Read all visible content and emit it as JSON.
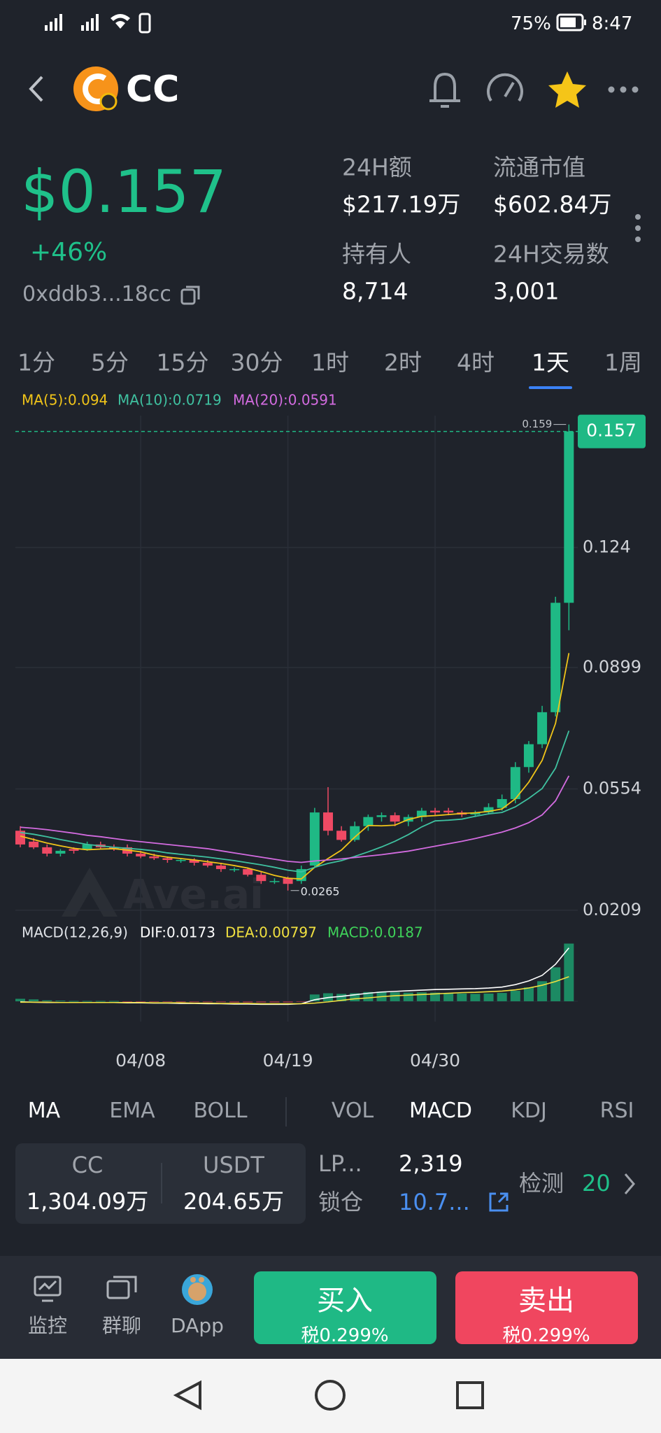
{
  "status_bar": {
    "battery": "75%",
    "time": "8:47"
  },
  "header": {
    "symbol": "CC"
  },
  "price": {
    "price": "$0.157",
    "change": "+46%",
    "address": "0xddb3...18cc"
  },
  "stats": [
    {
      "label": "24H额",
      "value": "$217.19万"
    },
    {
      "label": "流通市值",
      "value": "$602.84万"
    },
    {
      "label": "持有人",
      "value": "8,714"
    },
    {
      "label": "24H交易数",
      "value": "3,001"
    }
  ],
  "timeframes": {
    "tabs": [
      "1分",
      "5分",
      "15分",
      "30分",
      "1时",
      "2时",
      "4时",
      "1天",
      "1周"
    ],
    "active": 7
  },
  "chart_data": {
    "type": "candlestick",
    "categories": [
      null,
      null,
      null,
      null,
      null,
      null,
      null,
      null,
      null,
      "04/08",
      null,
      null,
      null,
      null,
      null,
      null,
      null,
      null,
      null,
      null,
      "04/19",
      null,
      null,
      null,
      null,
      null,
      null,
      null,
      null,
      null,
      null,
      "04/30",
      null,
      null,
      null,
      null,
      null,
      null,
      null,
      null,
      null,
      null
    ],
    "open": [
      0.0435,
      0.0404,
      0.0388,
      0.037,
      0.0383,
      0.0383,
      0.0396,
      0.0388,
      0.0388,
      0.037,
      0.0362,
      0.0357,
      0.0352,
      0.0352,
      0.0344,
      0.0336,
      0.0326,
      0.0326,
      0.031,
      0.0292,
      0.03,
      0.0292,
      0.0336,
      0.0487,
      0.0435,
      0.0409,
      0.0448,
      0.0474,
      0.0479,
      0.0461,
      0.0474,
      0.0492,
      0.0492,
      0.0487,
      0.0481,
      0.0487,
      0.05,
      0.0525,
      0.0616,
      0.0681,
      0.0772,
      0.1083
    ],
    "high": [
      0.0448,
      0.0414,
      0.0396,
      0.0383,
      0.0388,
      0.0404,
      0.0404,
      0.0396,
      0.0396,
      0.0378,
      0.037,
      0.0362,
      0.0357,
      0.0357,
      0.0352,
      0.0344,
      0.0331,
      0.0331,
      0.0318,
      0.03,
      0.0305,
      0.0336,
      0.05,
      0.0559,
      0.0448,
      0.0461,
      0.0481,
      0.0487,
      0.0487,
      0.0481,
      0.05,
      0.05,
      0.05,
      0.0492,
      0.0492,
      0.0513,
      0.0538,
      0.063,
      0.069,
      0.079,
      0.11,
      0.159
    ],
    "low": [
      0.0388,
      0.0383,
      0.0362,
      0.0362,
      0.037,
      0.0378,
      0.0383,
      0.0378,
      0.0362,
      0.0357,
      0.0352,
      0.0344,
      0.0344,
      0.0336,
      0.0331,
      0.0318,
      0.0318,
      0.0305,
      0.0284,
      0.0284,
      0.0265,
      0.0284,
      0.0331,
      0.0422,
      0.0404,
      0.0404,
      0.0435,
      0.0461,
      0.0448,
      0.0448,
      0.0461,
      0.0479,
      0.0479,
      0.0474,
      0.0474,
      0.0481,
      0.0492,
      0.0513,
      0.06,
      0.067,
      0.076,
      0.1005
    ],
    "close": [
      0.0396,
      0.0388,
      0.037,
      0.0378,
      0.0378,
      0.0396,
      0.0388,
      0.0383,
      0.037,
      0.0362,
      0.0357,
      0.0352,
      0.0352,
      0.0344,
      0.0336,
      0.0326,
      0.0326,
      0.031,
      0.0292,
      0.0292,
      0.0284,
      0.0326,
      0.0487,
      0.0435,
      0.0409,
      0.0448,
      0.0474,
      0.0479,
      0.0461,
      0.0474,
      0.0492,
      0.0487,
      0.0487,
      0.0481,
      0.0487,
      0.0502,
      0.0525,
      0.0616,
      0.0681,
      0.0772,
      0.1083,
      0.157
    ],
    "up_color": "#1fb985",
    "down_color": "#ef4a64",
    "series": [
      {
        "name": "MA(5):0.094",
        "color": "#f0c419",
        "values": [
          0.042,
          0.041,
          0.04,
          0.0392,
          0.0385,
          0.0381,
          0.0383,
          0.0384,
          0.038,
          0.0375,
          0.0366,
          0.036,
          0.0356,
          0.0352,
          0.0347,
          0.0342,
          0.0336,
          0.0329,
          0.0319,
          0.0308,
          0.03,
          0.0298,
          0.0331,
          0.0356,
          0.038,
          0.0417,
          0.045,
          0.0449,
          0.0451,
          0.0467,
          0.0476,
          0.0478,
          0.0481,
          0.0484,
          0.0486,
          0.049,
          0.0497,
          0.0526,
          0.0573,
          0.0635,
          0.074,
          0.094
        ]
      },
      {
        "name": "MA(10):0.0719",
        "color": "#3fc1a0",
        "values": [
          0.043,
          0.0425,
          0.0418,
          0.041,
          0.0403,
          0.0396,
          0.0392,
          0.0388,
          0.0385,
          0.0382,
          0.0378,
          0.0372,
          0.0368,
          0.0364,
          0.036,
          0.0355,
          0.035,
          0.0344,
          0.0338,
          0.0331,
          0.0323,
          0.0318,
          0.0331,
          0.0342,
          0.035,
          0.0362,
          0.0375,
          0.0389,
          0.0405,
          0.0424,
          0.0446,
          0.0463,
          0.0465,
          0.0468,
          0.0476,
          0.0483,
          0.0487,
          0.0503,
          0.0527,
          0.0555,
          0.0613,
          0.0719
        ]
      },
      {
        "name": "MA(20):0.0591",
        "color": "#d36be0",
        "values": [
          0.0445,
          0.0442,
          0.0438,
          0.0433,
          0.0428,
          0.0422,
          0.0418,
          0.0413,
          0.0408,
          0.0404,
          0.04,
          0.0396,
          0.0392,
          0.0388,
          0.0384,
          0.0378,
          0.0372,
          0.0366,
          0.036,
          0.0354,
          0.0348,
          0.0345,
          0.0349,
          0.0352,
          0.0355,
          0.0359,
          0.0363,
          0.0367,
          0.0372,
          0.0377,
          0.0384,
          0.0391,
          0.0398,
          0.0405,
          0.0413,
          0.0422,
          0.0431,
          0.0443,
          0.0458,
          0.048,
          0.052,
          0.0591
        ]
      }
    ],
    "ylim": [
      0.0175,
      0.1615
    ],
    "yticks": [
      0.124,
      0.0899,
      0.0554,
      0.0209
    ],
    "grid": true,
    "last_price": 0.157,
    "high_mark": 0.159,
    "low_mark": 0.0265,
    "watermark": "Ave.ai",
    "macd": {
      "title": "MACD(12,26,9)",
      "ylim": [
        -0.0025,
        0.0195
      ],
      "histogram": {
        "name": "MACD:0.0187",
        "color": "#3fd35a",
        "values": [
          0.0008,
          0.0006,
          0.0003,
          0.0002,
          0.0001,
          0.0001,
          0.0001,
          0.0001,
          -0.0001,
          -0.0002,
          -0.0002,
          -0.0002,
          -0.0003,
          -0.0003,
          -0.0003,
          -0.0003,
          -0.0004,
          -0.0004,
          -0.0004,
          -0.0004,
          -0.0004,
          -0.0002,
          0.0022,
          0.0026,
          0.0024,
          0.0026,
          0.003,
          0.0031,
          0.0029,
          0.0028,
          0.0029,
          0.0028,
          0.0027,
          0.0025,
          0.0024,
          0.0025,
          0.0027,
          0.0034,
          0.0045,
          0.0065,
          0.011,
          0.0187
        ]
      },
      "series": [
        {
          "name": "DIF:0.0173",
          "color": "#ffffff",
          "values": [
            -0.0002,
            -0.0003,
            -0.0004,
            -0.0004,
            -0.0004,
            -0.0004,
            -0.0004,
            -0.0004,
            -0.0005,
            -0.0005,
            -0.0006,
            -0.0006,
            -0.0007,
            -0.0007,
            -0.0008,
            -0.0008,
            -0.0009,
            -0.0009,
            -0.001,
            -0.001,
            -0.001,
            -0.0008,
            0.0005,
            0.0012,
            0.0016,
            0.0021,
            0.0026,
            0.003,
            0.0032,
            0.0034,
            0.0036,
            0.0038,
            0.0039,
            0.004,
            0.0041,
            0.0043,
            0.0046,
            0.0054,
            0.0066,
            0.0084,
            0.012,
            0.0173
          ]
        },
        {
          "name": "DEA:0.00797",
          "color": "#f0e040",
          "values": [
            -0.0003,
            -0.0003,
            -0.0003,
            -0.0004,
            -0.0004,
            -0.0004,
            -0.0004,
            -0.0004,
            -0.0004,
            -0.0004,
            -0.0005,
            -0.0005,
            -0.0005,
            -0.0006,
            -0.0006,
            -0.0007,
            -0.0007,
            -0.0007,
            -0.0008,
            -0.0008,
            -0.0008,
            -0.0008,
            -0.0006,
            -0.0002,
            0.0003,
            0.0008,
            0.0011,
            0.0015,
            0.0018,
            0.002,
            0.0022,
            0.0024,
            0.0026,
            0.0028,
            0.0029,
            0.0031,
            0.0033,
            0.0037,
            0.0043,
            0.0052,
            0.0064,
            0.00797
          ]
        }
      ]
    }
  },
  "indicators": {
    "tabs": [
      "MA",
      "EMA",
      "BOLL",
      "VOL",
      "MACD",
      "KDJ",
      "RSI"
    ],
    "active": [
      0,
      4
    ]
  },
  "pool": {
    "tokens": [
      {
        "symbol": "CC",
        "amount": "1,304.09万"
      },
      {
        "symbol": "USDT",
        "amount": "204.65万"
      }
    ],
    "lp_label": "LP...",
    "lp_value": "2,319",
    "lock_label": "锁仓",
    "lock_value": "10.7...",
    "detect_label": "检测",
    "detect_count": "20"
  },
  "bottom_nav": {
    "items": [
      "监控",
      "群聊",
      "DApp"
    ],
    "buy": "买入",
    "buy_tax": "税0.299%",
    "sell": "卖出",
    "sell_tax": "税0.299%"
  }
}
